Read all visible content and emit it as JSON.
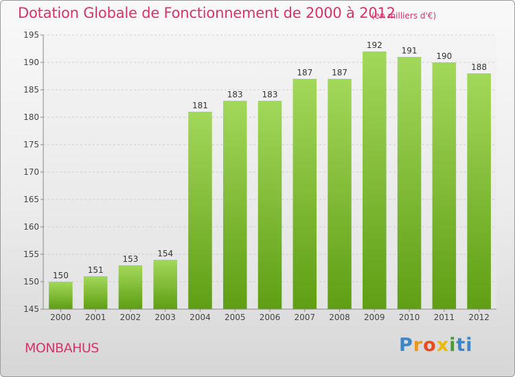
{
  "header": {
    "title": "Dotation Globale de Fonctionnement de 2000 à 2012",
    "unit": "(en milliers d'€)"
  },
  "footer": {
    "commune": "MONBAHUS",
    "logo_text": "Proxiti",
    "logo_colors": [
      "#3a86c8",
      "#e79a1e",
      "#e8491e",
      "#f0b800",
      "#4a9a3a",
      "#3a86c8"
    ]
  },
  "chart_data": {
    "type": "bar",
    "categories": [
      "2000",
      "2001",
      "2002",
      "2003",
      "2004",
      "2005",
      "2006",
      "2007",
      "2008",
      "2009",
      "2010",
      "2011",
      "2012"
    ],
    "values": [
      150,
      151,
      153,
      154,
      181,
      183,
      183,
      187,
      187,
      192,
      191,
      190,
      188
    ],
    "ylim": [
      145,
      195
    ],
    "yticks": [
      145,
      150,
      155,
      160,
      165,
      170,
      175,
      180,
      185,
      190,
      195
    ],
    "grid": true,
    "bar_color_top": "#a3d85a",
    "bar_color_bottom": "#5f9e15"
  }
}
